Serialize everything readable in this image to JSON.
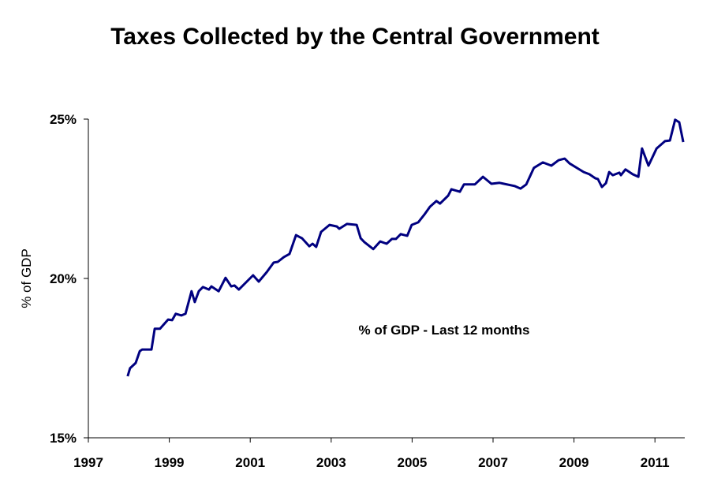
{
  "chart_data": {
    "type": "line",
    "title": "Taxes Collected by the Central Government",
    "xlabel": "",
    "ylabel": "% of GDP",
    "annotation": "% of GDP - Last 12 months",
    "xlim": [
      1997,
      2011.7
    ],
    "ylim": [
      15,
      25
    ],
    "x_ticks": [
      "1997",
      "1999",
      "2001",
      "2003",
      "2005",
      "2007",
      "2009",
      "2011"
    ],
    "y_ticks": [
      "15%",
      "20%",
      "25%"
    ],
    "grid": false,
    "legend": "none",
    "line_color": "#000080",
    "series": [
      {
        "x": [
          1997.97,
          1998.03,
          1998.17,
          1998.27,
          1998.33,
          1998.56,
          1998.64,
          1998.77,
          1998.97,
          1999.07,
          1999.16,
          1999.3,
          1999.4,
          1999.55,
          1999.63,
          1999.73,
          1999.83,
          1999.98,
          2000.04,
          2000.22,
          2000.39,
          2000.53,
          2000.61,
          2000.72,
          2001.07,
          2001.21,
          2001.41,
          2001.58,
          2001.68,
          2001.83,
          2001.97,
          2002.13,
          2002.28,
          2002.46,
          2002.54,
          2002.63,
          2002.75,
          2002.96,
          2003.14,
          2003.2,
          2003.39,
          2003.63,
          2003.73,
          2003.82,
          2004.04,
          2004.21,
          2004.37,
          2004.5,
          2004.6,
          2004.72,
          2004.88,
          2004.99,
          2005.15,
          2005.3,
          2005.44,
          2005.6,
          2005.69,
          2005.89,
          2005.97,
          2006.18,
          2006.28,
          2006.55,
          2006.75,
          2006.96,
          2007.16,
          2007.53,
          2007.68,
          2007.82,
          2008.01,
          2008.23,
          2008.44,
          2008.62,
          2008.77,
          2008.89,
          2009.24,
          2009.38,
          2009.53,
          2009.59,
          2009.69,
          2009.79,
          2009.87,
          2009.96,
          2010.12,
          2010.16,
          2010.27,
          2010.45,
          2010.59,
          2010.68,
          2010.84,
          2011.04,
          2011.25,
          2011.37,
          2011.5,
          2011.6,
          2011.7
        ],
        "y": [
          16.93,
          17.18,
          17.35,
          17.72,
          17.77,
          17.77,
          18.42,
          18.42,
          18.71,
          18.69,
          18.89,
          18.84,
          18.89,
          19.6,
          19.26,
          19.6,
          19.73,
          19.65,
          19.75,
          19.6,
          20.02,
          19.75,
          19.78,
          19.65,
          20.1,
          19.9,
          20.2,
          20.5,
          20.52,
          20.67,
          20.77,
          21.36,
          21.26,
          21.01,
          21.09,
          20.99,
          21.46,
          21.68,
          21.63,
          21.56,
          21.71,
          21.68,
          21.26,
          21.14,
          20.92,
          21.16,
          21.09,
          21.24,
          21.24,
          21.39,
          21.34,
          21.68,
          21.76,
          22.0,
          22.25,
          22.43,
          22.35,
          22.6,
          22.8,
          22.72,
          22.95,
          22.95,
          23.19,
          22.97,
          23.0,
          22.9,
          22.82,
          22.95,
          23.47,
          23.64,
          23.54,
          23.71,
          23.76,
          23.61,
          23.34,
          23.27,
          23.14,
          23.12,
          22.87,
          22.99,
          23.34,
          23.24,
          23.32,
          23.24,
          23.42,
          23.27,
          23.19,
          24.08,
          23.54,
          24.08,
          24.31,
          24.33,
          24.98,
          24.9,
          24.28
        ]
      }
    ]
  }
}
